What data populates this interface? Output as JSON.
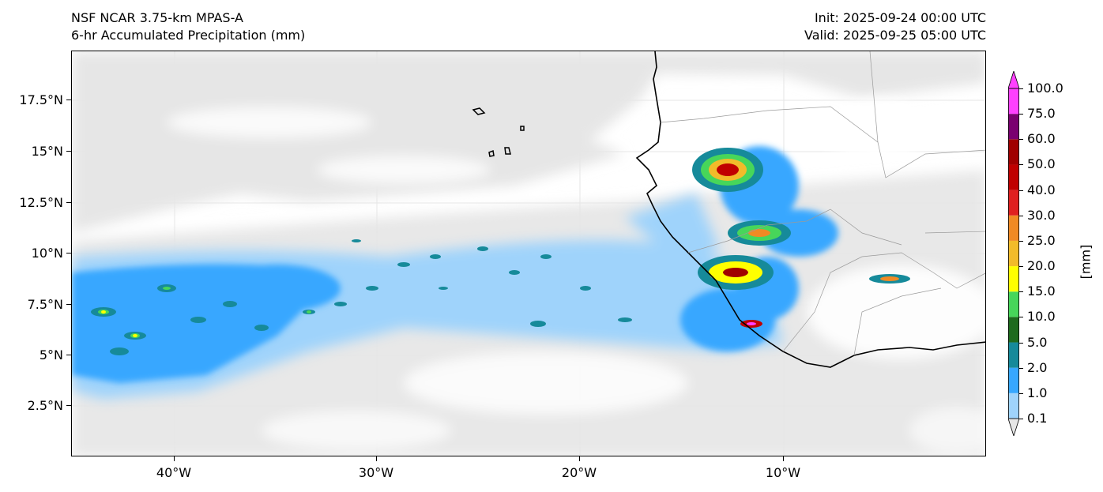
{
  "header": {
    "left_line1": "NSF NCAR 3.75-km MPAS-A",
    "left_line2": "6-hr Accumulated Precipitation (mm)",
    "right_line1": "Init: 2025-09-24 00:00 UTC",
    "right_line2": "Valid: 2025-09-25 05:00 UTC"
  },
  "axes": {
    "y_ticks": [
      "17.5°N",
      "15°N",
      "12.5°N",
      "10°N",
      "7.5°N",
      "5°N",
      "2.5°N"
    ],
    "x_ticks": [
      "40°W",
      "30°W",
      "20°W",
      "10°W"
    ],
    "lat_range": [
      0,
      20
    ],
    "lon_range": [
      -45,
      -0.5
    ]
  },
  "colorbar": {
    "units": "[mm]",
    "levels": [
      "0.1",
      "1.0",
      "2.0",
      "5.0",
      "10.0",
      "15.0",
      "20.0",
      "25.0",
      "30.0",
      "40.0",
      "50.0",
      "60.0",
      "75.0",
      "100.0"
    ],
    "colors": [
      "#e6e6e6",
      "#9fd3fb",
      "#37a7ff",
      "#168a9a",
      "#1e6b1e",
      "#47d65a",
      "#ffff00",
      "#f2bb2a",
      "#f08a24",
      "#e02020",
      "#c00000",
      "#a00000",
      "#7a0070",
      "#ff40ff"
    ]
  },
  "map": {
    "background": "#ffffff",
    "land_outline_color": "#000000",
    "border_color": "#9a9a9a"
  }
}
